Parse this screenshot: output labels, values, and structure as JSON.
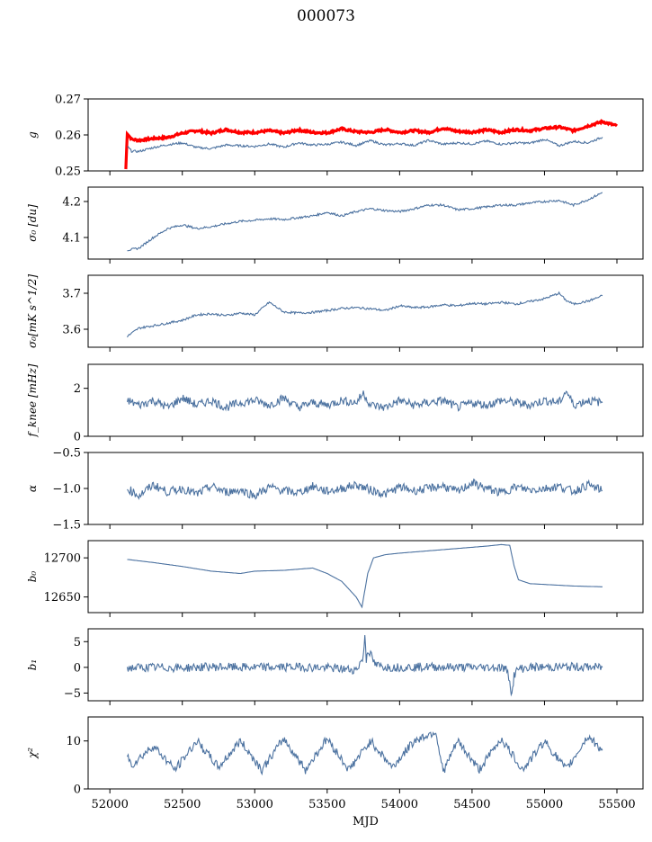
{
  "figure": {
    "title": "000073",
    "xlabel": "MJD",
    "x_ticks": [
      52000,
      52500,
      53000,
      53500,
      54000,
      54500,
      55000,
      55500
    ],
    "xlim": [
      51850,
      55680
    ]
  },
  "colors": {
    "series_blue": "#4c72a0",
    "series_red": "#ff0000",
    "axis": "#000000"
  },
  "chart_data": [
    {
      "type": "line",
      "ylabel": "g",
      "ylim": [
        0.25,
        0.27
      ],
      "yticks": [
        0.25,
        0.26,
        0.27
      ],
      "ytick_labels": [
        "0.25",
        "0.26",
        "0.27"
      ],
      "series": [
        {
          "color": "red",
          "x": [
            52110,
            52120,
            52150,
            52200,
            52300,
            52400,
            52500,
            52600,
            52700,
            52800,
            52900,
            53000,
            53100,
            53200,
            53300,
            53400,
            53500,
            53600,
            53700,
            53800,
            53900,
            54000,
            54100,
            54200,
            54300,
            54400,
            54500,
            54600,
            54700,
            54800,
            54900,
            55000,
            55100,
            55200,
            55300,
            55400,
            55500
          ],
          "y": [
            0.2505,
            0.2605,
            0.2588,
            0.2585,
            0.259,
            0.2593,
            0.2605,
            0.2612,
            0.2605,
            0.2615,
            0.2607,
            0.2607,
            0.2612,
            0.2605,
            0.2614,
            0.2607,
            0.2606,
            0.2617,
            0.2609,
            0.2607,
            0.2615,
            0.2607,
            0.2612,
            0.2607,
            0.2619,
            0.261,
            0.2608,
            0.2614,
            0.2607,
            0.2615,
            0.2612,
            0.2618,
            0.2622,
            0.2612,
            0.2625,
            0.2637,
            0.2625
          ]
        },
        {
          "color": "blue",
          "x": [
            52120,
            52150,
            52200,
            52300,
            52400,
            52500,
            52600,
            52700,
            52800,
            52900,
            53000,
            53100,
            53200,
            53300,
            53400,
            53500,
            53600,
            53700,
            53800,
            53900,
            54000,
            54100,
            54200,
            54300,
            54400,
            54500,
            54600,
            54700,
            54800,
            54900,
            55000,
            55100,
            55200,
            55300,
            55400
          ],
          "y": [
            0.2568,
            0.2555,
            0.2554,
            0.2565,
            0.2573,
            0.2578,
            0.2565,
            0.2562,
            0.2572,
            0.257,
            0.2568,
            0.2575,
            0.2566,
            0.2578,
            0.2572,
            0.2574,
            0.258,
            0.2571,
            0.2584,
            0.2572,
            0.2576,
            0.2571,
            0.2585,
            0.2574,
            0.2578,
            0.2575,
            0.2583,
            0.2574,
            0.2578,
            0.2577,
            0.2588,
            0.257,
            0.2582,
            0.2578,
            0.2594
          ]
        }
      ]
    },
    {
      "type": "line",
      "ylabel": "σ₀ [du]",
      "ylim": [
        4.04,
        4.24
      ],
      "yticks": [
        4.1,
        4.2
      ],
      "ytick_labels": [
        "4.1",
        "4.2"
      ],
      "series": [
        {
          "color": "blue",
          "x": [
            52120,
            52200,
            52300,
            52400,
            52500,
            52600,
            52700,
            52800,
            52900,
            53000,
            53100,
            53200,
            53300,
            53400,
            53500,
            53600,
            53700,
            53800,
            53900,
            54000,
            54100,
            54200,
            54300,
            54400,
            54500,
            54600,
            54700,
            54800,
            54900,
            55000,
            55100,
            55200,
            55300,
            55400
          ],
          "y": [
            4.065,
            4.07,
            4.1,
            4.125,
            4.135,
            4.125,
            4.13,
            4.138,
            4.145,
            4.148,
            4.152,
            4.15,
            4.155,
            4.16,
            4.17,
            4.16,
            4.172,
            4.18,
            4.175,
            4.172,
            4.18,
            4.19,
            4.19,
            4.177,
            4.18,
            4.185,
            4.19,
            4.19,
            4.196,
            4.2,
            4.203,
            4.19,
            4.205,
            4.225
          ]
        }
      ]
    },
    {
      "type": "line",
      "ylabel": "σ₀[mK s^1/2]",
      "ylim": [
        3.55,
        3.75
      ],
      "yticks": [
        3.6,
        3.7
      ],
      "ytick_labels": [
        "3.6",
        "3.7"
      ],
      "series": [
        {
          "color": "blue",
          "x": [
            52120,
            52200,
            52300,
            52400,
            52500,
            52600,
            52700,
            52800,
            52900,
            53000,
            53100,
            53200,
            53300,
            53400,
            53500,
            53600,
            53700,
            53800,
            53900,
            54000,
            54100,
            54200,
            54300,
            54400,
            54500,
            54600,
            54700,
            54800,
            54900,
            55000,
            55100,
            55150,
            55200,
            55300,
            55400
          ],
          "y": [
            3.58,
            3.603,
            3.61,
            3.617,
            3.625,
            3.64,
            3.643,
            3.638,
            3.645,
            3.64,
            3.675,
            3.648,
            3.645,
            3.647,
            3.652,
            3.658,
            3.66,
            3.657,
            3.652,
            3.665,
            3.66,
            3.662,
            3.668,
            3.665,
            3.672,
            3.67,
            3.675,
            3.67,
            3.677,
            3.685,
            3.7,
            3.68,
            3.67,
            3.678,
            3.693
          ]
        }
      ]
    },
    {
      "type": "line",
      "ylabel": "f_knee [mHz]",
      "ylim": [
        0,
        3
      ],
      "yticks": [
        0,
        2
      ],
      "ytick_labels": [
        "0",
        "2"
      ],
      "series": [
        {
          "color": "blue",
          "x": [
            52120,
            52200,
            52300,
            52400,
            52500,
            52600,
            52700,
            52800,
            52900,
            53000,
            53100,
            53200,
            53300,
            53400,
            53500,
            53600,
            53700,
            53750,
            53800,
            53900,
            54000,
            54100,
            54200,
            54300,
            54400,
            54500,
            54600,
            54700,
            54800,
            54900,
            55000,
            55100,
            55150,
            55200,
            55300,
            55400
          ],
          "y": [
            1.5,
            1.3,
            1.5,
            1.2,
            1.6,
            1.3,
            1.5,
            1.2,
            1.4,
            1.5,
            1.3,
            1.6,
            1.2,
            1.4,
            1.3,
            1.5,
            1.4,
            1.8,
            1.3,
            1.2,
            1.5,
            1.3,
            1.4,
            1.5,
            1.2,
            1.4,
            1.3,
            1.5,
            1.4,
            1.3,
            1.5,
            1.4,
            1.9,
            1.3,
            1.5,
            1.4
          ]
        }
      ]
    },
    {
      "type": "line",
      "ylabel": "α",
      "ylim": [
        -1.5,
        -0.5
      ],
      "yticks": [
        -1.5,
        -1.0,
        -0.5
      ],
      "ytick_labels": [
        "−1.5",
        "−1.0",
        "−0.5"
      ],
      "series": [
        {
          "color": "blue",
          "x": [
            52120,
            52200,
            52300,
            52400,
            52500,
            52600,
            52700,
            52800,
            52900,
            53000,
            53100,
            53200,
            53300,
            53400,
            53500,
            53600,
            53700,
            53800,
            53900,
            54000,
            54100,
            54200,
            54300,
            54400,
            54500,
            54600,
            54700,
            54800,
            54900,
            55000,
            55100,
            55200,
            55300,
            55400
          ],
          "y": [
            -1.0,
            -1.1,
            -0.95,
            -1.05,
            -1.0,
            -1.08,
            -0.97,
            -1.05,
            -1.02,
            -1.1,
            -0.98,
            -1.03,
            -1.06,
            -0.97,
            -1.04,
            -1.0,
            -0.95,
            -1.02,
            -1.08,
            -0.98,
            -1.03,
            -1.0,
            -0.96,
            -1.05,
            -0.92,
            -1.0,
            -1.06,
            -0.98,
            -1.02,
            -1.0,
            -0.97,
            -1.04,
            -0.95,
            -1.03
          ]
        }
      ]
    },
    {
      "type": "line",
      "ylabel": "b₀",
      "ylim": [
        12630,
        12722
      ],
      "yticks": [
        12650,
        12700
      ],
      "ytick_labels": [
        "12650",
        "12700"
      ],
      "series": [
        {
          "color": "blue",
          "x": [
            52120,
            52300,
            52500,
            52700,
            52900,
            53000,
            53200,
            53400,
            53500,
            53600,
            53700,
            53740,
            53780,
            53820,
            53900,
            54000,
            54200,
            54400,
            54600,
            54700,
            54760,
            54790,
            54820,
            54900,
            55000,
            55200,
            55400
          ],
          "y": [
            12698,
            12694,
            12689,
            12683,
            12680,
            12683,
            12684,
            12687,
            12680,
            12670,
            12650,
            12637,
            12680,
            12700,
            12704,
            12706,
            12709,
            12712,
            12715,
            12717,
            12716,
            12690,
            12672,
            12667,
            12666,
            12664,
            12663
          ]
        }
      ]
    },
    {
      "type": "line",
      "ylabel": "b₁",
      "ylim": [
        -6.5,
        7.5
      ],
      "yticks": [
        -5,
        0,
        5
      ],
      "ytick_labels": [
        "−5",
        "0",
        "5"
      ],
      "series": [
        {
          "color": "blue",
          "x": [
            52120,
            52300,
            52500,
            52700,
            52900,
            53100,
            53300,
            53500,
            53700,
            53750,
            53760,
            53770,
            53780,
            53800,
            53830,
            53870,
            53950,
            54200,
            54500,
            54700,
            54740,
            54760,
            54775,
            54790,
            54820,
            54900,
            55200,
            55400
          ],
          "y": [
            -0.1,
            0.0,
            -0.1,
            0.1,
            0.0,
            0.0,
            0.1,
            -0.1,
            -0.5,
            2.0,
            6.5,
            1.5,
            3.5,
            2.5,
            0.5,
            0.2,
            0.0,
            0.1,
            0.0,
            0.0,
            -0.5,
            -2.5,
            -5.5,
            -1.5,
            -0.3,
            0.0,
            0.1,
            0.0
          ]
        }
      ]
    },
    {
      "type": "line",
      "ylabel": "χ²",
      "ylim": [
        0,
        15
      ],
      "yticks": [
        0,
        10
      ],
      "ytick_labels": [
        "0",
        "10"
      ],
      "series": [
        {
          "color": "blue",
          "x": [
            52120,
            52150,
            52300,
            52450,
            52600,
            52750,
            52900,
            53050,
            53200,
            53350,
            53500,
            53650,
            53800,
            53950,
            54100,
            54250,
            54300,
            54400,
            54550,
            54700,
            54850,
            55000,
            55150,
            55300,
            55400
          ],
          "y": [
            7,
            5,
            9,
            4,
            10,
            4.5,
            10,
            4,
            10.5,
            4,
            10.5,
            4,
            10,
            4.5,
            10,
            12,
            3.5,
            10,
            4,
            10.5,
            4,
            10,
            4,
            11,
            8
          ]
        }
      ]
    }
  ]
}
